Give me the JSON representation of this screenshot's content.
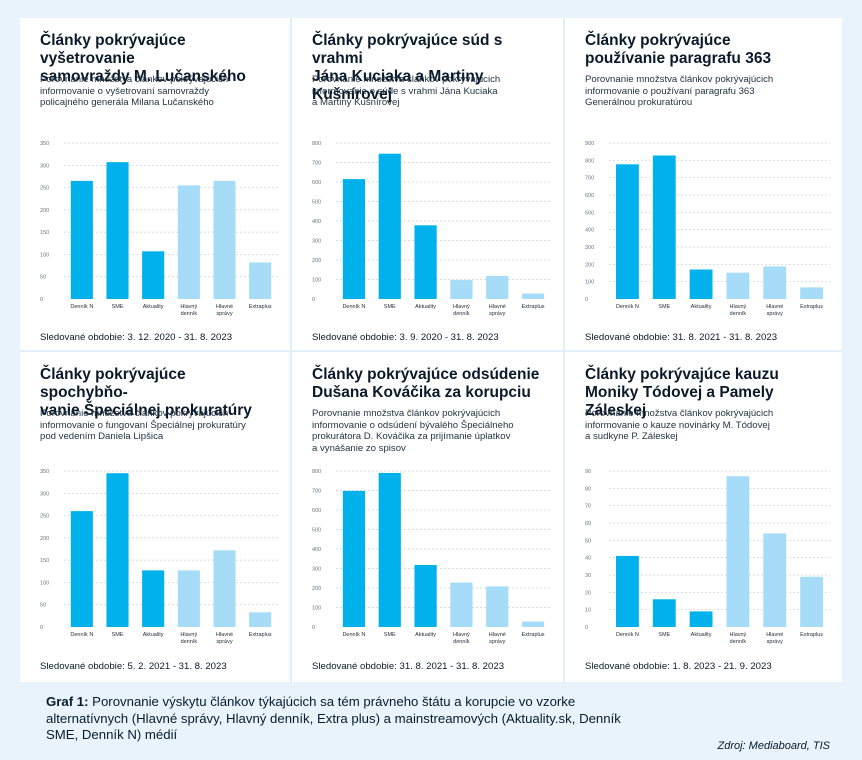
{
  "colors": {
    "mainstream": "#00b1ec",
    "alternative": "#a6dcf7",
    "grid": "#c9ced4",
    "tick": "#6b7680"
  },
  "panels": [
    {
      "title": "Články pokrývajúce vyšetrovanie\nsamovraždy M. Lučanského",
      "subtitle": "Porovnanie množstva článkov pokrývajúcich\ninformovanie o vyšetrovaní samovraždy\npolicajného generála Milana Lučanského",
      "period": "Sledované obdobie: 3. 12. 2020 - 31. 8. 2023"
    },
    {
      "title": "Články pokrývajúce súd s vrahmi\nJána Kuciaka a Martiny Kušnírovej",
      "subtitle": "Porovnanie množstva článkov pokrývajúcich\ninformovanie o súde s vrahmi Jána Kuciaka\na Martiny Kušnírovej",
      "period": "Sledované obdobie: 3. 9. 2020 - 31. 8. 2023"
    },
    {
      "title": "Články pokrývajúce\npoužívanie paragrafu 363",
      "subtitle": "Porovnanie množstva článkov pokrývajúcich\ninformovanie o používaní paragrafu 363\nGenerálnou prokuratúrou",
      "period": "Sledované obdobie: 31. 8. 2021 - 31. 8. 2023"
    },
    {
      "title": "Články pokrývajúce spochybňo-\nvanie Špeciálnej prokuratúry",
      "subtitle": "Porovnanie množstva článkov pokrývajúcich\ninformovanie o fungovaní Špeciálnej prokuratúry\npod vedením Daniela Lipšica",
      "period": "Sledované obdobie: 5. 2. 2021 - 31. 8. 2023"
    },
    {
      "title": "Články pokrývajúce odsúdenie\nDušana Kováčika za korupciu",
      "subtitle": "Porovnanie množstva článkov pokrývajúcich\ninformovanie o odsúdení bývalého Špeciálneho\nprokurátora D. Kováčika za prijímanie úplatkov\na vynášanie zo spisov",
      "period": "Sledované obdobie: 31. 8. 2021 - 31. 8. 2023"
    },
    {
      "title": "Články pokrývajúce kauzu\nMoniky Tódovej a Pamely Záleskej",
      "subtitle": "Porovnanie množstva článkov pokrývajúcich\ninformovanie o kauze novinárky M. Tódovej\na sudkyne P. Záleskej",
      "period": "Sledované obdobie: 1. 8. 2023 - 21. 9. 2023"
    }
  ],
  "chart_data": [
    {
      "type": "bar",
      "categories": [
        "Denník N",
        "SME",
        "Aktuality",
        "Hlavný\ndenník",
        "Hlavné\nsprávy",
        "Extraplus"
      ],
      "values": [
        265,
        307,
        107,
        255,
        265,
        82
      ],
      "ylim": [
        0,
        350
      ],
      "yticks": [
        0,
        50,
        100,
        150,
        200,
        250,
        300,
        350
      ],
      "grid": true
    },
    {
      "type": "bar",
      "categories": [
        "Denník N",
        "SME",
        "Aktuality",
        "Hlavný\ndenník",
        "Hlavné\nsprávy",
        "Extraplus"
      ],
      "values": [
        615,
        745,
        378,
        97,
        118,
        28
      ],
      "ylim": [
        0,
        800
      ],
      "yticks": [
        0,
        100,
        200,
        300,
        400,
        500,
        600,
        700,
        800
      ],
      "grid": true
    },
    {
      "type": "bar",
      "categories": [
        "Denník N",
        "SME",
        "Aktuality",
        "Hlavný\ndenník",
        "Hlavné\nsprávy",
        "Extraplus"
      ],
      "values": [
        777,
        828,
        170,
        152,
        188,
        67
      ],
      "ylim": [
        0,
        900
      ],
      "yticks": [
        0,
        100,
        200,
        300,
        400,
        500,
        600,
        700,
        800,
        900
      ],
      "grid": true
    },
    {
      "type": "bar",
      "categories": [
        "Denník N",
        "SME",
        "Aktuality",
        "Hlavný\ndenník",
        "Hlavné\nsprávy",
        "Extraplus"
      ],
      "values": [
        260,
        345,
        127,
        127,
        172,
        33
      ],
      "ylim": [
        0,
        350
      ],
      "yticks": [
        0,
        50,
        100,
        150,
        200,
        250,
        300,
        350
      ],
      "grid": true
    },
    {
      "type": "bar",
      "categories": [
        "Denník N",
        "SME",
        "Aktuality",
        "Hlavný\ndenník",
        "Hlavné\nsprávy",
        "Extraplus"
      ],
      "values": [
        698,
        790,
        318,
        228,
        208,
        28
      ],
      "ylim": [
        0,
        800
      ],
      "yticks": [
        0,
        100,
        200,
        300,
        400,
        500,
        600,
        700,
        800
      ],
      "grid": true
    },
    {
      "type": "bar",
      "categories": [
        "Denník N",
        "SME",
        "Aktuality",
        "Hlavný\ndenník",
        "Hlavné\nsprávy",
        "Extraplus"
      ],
      "values": [
        41,
        16,
        9,
        87,
        54,
        29
      ],
      "ylim": [
        0,
        90
      ],
      "yticks": [
        0,
        10,
        20,
        30,
        40,
        50,
        60,
        70,
        80,
        90
      ],
      "grid": true
    }
  ],
  "caption": {
    "label": "Graf 1:",
    "text": " Porovnanie výskytu článkov týkajúcich sa tém právneho štátu a korupcie vo vzorke alternatívnych (Hlavné správy, Hlavný denník, Extra plus) a mainstreamových (Aktuality.sk, Denník SME, Denník N) médií"
  },
  "source": "Zdroj: Mediaboard, TIS"
}
